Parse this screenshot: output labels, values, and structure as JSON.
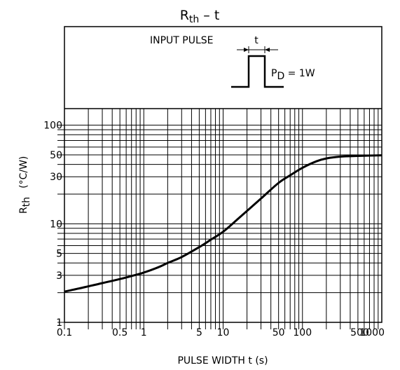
{
  "chart_data": {
    "type": "line",
    "title": {
      "main": "R",
      "sub": "th",
      "rest": "  –  t"
    },
    "xlabel": "PULSE WIDTH   t   (s)",
    "ylabel": {
      "main": "R",
      "sub": "th",
      "units": "(°C/W)"
    },
    "x_scale": "log",
    "y_scale": "log",
    "xlim": [
      0.1,
      1000
    ],
    "ylim": [
      1,
      1000
    ],
    "x_ticks": [
      {
        "value": 0.1,
        "label": "0.1"
      },
      {
        "value": 0.5,
        "label": "0.5"
      },
      {
        "value": 1,
        "label": "1"
      },
      {
        "value": 5,
        "label": "5"
      },
      {
        "value": 10,
        "label": "10"
      },
      {
        "value": 50,
        "label": "50"
      },
      {
        "value": 100,
        "label": "100"
      },
      {
        "value": 500,
        "label": "500"
      },
      {
        "value": 1000,
        "label": "1000"
      }
    ],
    "y_ticks": [
      {
        "value": 1,
        "label": "1"
      },
      {
        "value": 3,
        "label": "3"
      },
      {
        "value": 5,
        "label": "5"
      },
      {
        "value": 10,
        "label": "10"
      },
      {
        "value": 30,
        "label": "30"
      },
      {
        "value": 50,
        "label": "50"
      },
      {
        "value": 100,
        "label": "100"
      }
    ],
    "grid": true,
    "series": [
      {
        "x": [
          0.1,
          0.15,
          0.2,
          0.3,
          0.5,
          0.7,
          1,
          1.5,
          2,
          3,
          5,
          7,
          10,
          15,
          20,
          30,
          50,
          70,
          100,
          150,
          200,
          300,
          500,
          700,
          1000
        ],
        "y": [
          2.05,
          2.2,
          2.32,
          2.5,
          2.75,
          2.95,
          3.2,
          3.6,
          4.0,
          4.6,
          5.8,
          6.9,
          8.3,
          11,
          13.5,
          18,
          26,
          31,
          37,
          43,
          46,
          48,
          48.8,
          49.2,
          49.5
        ]
      }
    ],
    "inset": {
      "label": "INPUT PULSE",
      "width_label": "t",
      "power_main": "P",
      "power_sub": "D",
      "power_value": " = 1W"
    }
  }
}
